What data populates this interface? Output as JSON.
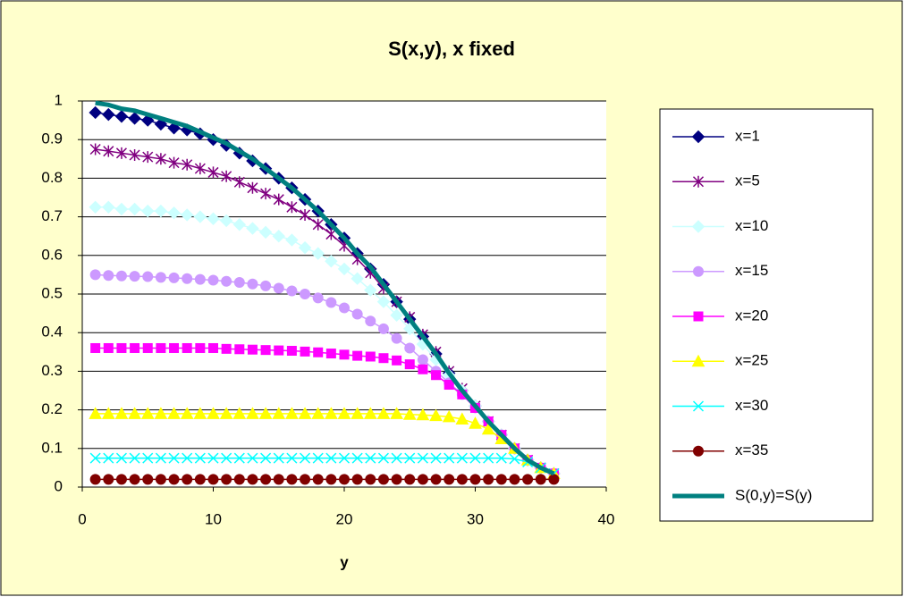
{
  "chart_data": {
    "type": "line",
    "title": "S(x,y), x fixed",
    "x_label": "y",
    "x": [
      1,
      2,
      3,
      4,
      5,
      6,
      7,
      8,
      9,
      10,
      11,
      12,
      13,
      14,
      15,
      16,
      17,
      18,
      19,
      20,
      21,
      22,
      23,
      24,
      25,
      26,
      27,
      28,
      29,
      30,
      31,
      32,
      33,
      34,
      35,
      36
    ],
    "xlim": [
      0,
      40
    ],
    "xticks": [
      0,
      10,
      20,
      30,
      40
    ],
    "ylim": [
      0,
      1
    ],
    "yticks": [
      0,
      0.1,
      0.2,
      0.3,
      0.4,
      0.5,
      0.6,
      0.7,
      0.8,
      0.9,
      1
    ],
    "grid": true,
    "legend": "right",
    "series": [
      {
        "name": "x=1",
        "color": "#000080",
        "marker": "diamond",
        "values": [
          0.97,
          0.965,
          0.96,
          0.955,
          0.95,
          0.94,
          0.93,
          0.925,
          0.915,
          0.9,
          0.885,
          0.865,
          0.845,
          0.825,
          0.8,
          0.775,
          0.745,
          0.715,
          0.68,
          0.645,
          0.605,
          0.565,
          0.525,
          0.48,
          0.435,
          0.39,
          0.345,
          0.295,
          0.25,
          0.21,
          0.17,
          0.135,
          0.1,
          0.07,
          0.05,
          0.035
        ]
      },
      {
        "name": "x=5",
        "color": "#800080",
        "marker": "star",
        "values": [
          0.875,
          0.87,
          0.865,
          0.86,
          0.855,
          0.85,
          0.84,
          0.835,
          0.825,
          0.815,
          0.805,
          0.79,
          0.775,
          0.76,
          0.745,
          0.725,
          0.705,
          0.68,
          0.655,
          0.625,
          0.59,
          0.555,
          0.515,
          0.48,
          0.44,
          0.395,
          0.35,
          0.3,
          0.255,
          0.21,
          0.17,
          0.135,
          0.1,
          0.07,
          0.05,
          0.035
        ]
      },
      {
        "name": "x=10",
        "color": "#CCFFFF",
        "marker": "diamond",
        "values": [
          0.725,
          0.725,
          0.72,
          0.72,
          0.715,
          0.715,
          0.71,
          0.705,
          0.7,
          0.695,
          0.69,
          0.68,
          0.67,
          0.66,
          0.65,
          0.64,
          0.62,
          0.605,
          0.585,
          0.565,
          0.54,
          0.51,
          0.48,
          0.445,
          0.41,
          0.37,
          0.33,
          0.29,
          0.25,
          0.21,
          0.17,
          0.135,
          0.1,
          0.07,
          0.05,
          0.035
        ]
      },
      {
        "name": "x=15",
        "color": "#CC99FF",
        "marker": "circle",
        "values": [
          0.55,
          0.548,
          0.547,
          0.546,
          0.545,
          0.543,
          0.542,
          0.54,
          0.538,
          0.536,
          0.533,
          0.53,
          0.526,
          0.521,
          0.515,
          0.508,
          0.5,
          0.49,
          0.478,
          0.464,
          0.448,
          0.43,
          0.41,
          0.385,
          0.36,
          0.33,
          0.3,
          0.27,
          0.24,
          0.205,
          0.17,
          0.135,
          0.1,
          0.07,
          0.05,
          0.035
        ]
      },
      {
        "name": "x=20",
        "color": "#FF00FF",
        "marker": "square",
        "values": [
          0.36,
          0.36,
          0.36,
          0.36,
          0.36,
          0.36,
          0.36,
          0.36,
          0.36,
          0.36,
          0.358,
          0.357,
          0.356,
          0.355,
          0.354,
          0.353,
          0.351,
          0.349,
          0.346,
          0.343,
          0.34,
          0.338,
          0.334,
          0.328,
          0.318,
          0.305,
          0.29,
          0.265,
          0.24,
          0.205,
          0.17,
          0.135,
          0.1,
          0.07,
          0.05,
          0.035
        ]
      },
      {
        "name": "x=25",
        "color": "#FFFF00",
        "marker": "triangle",
        "values": [
          0.19,
          0.19,
          0.19,
          0.19,
          0.19,
          0.19,
          0.19,
          0.19,
          0.19,
          0.19,
          0.19,
          0.19,
          0.19,
          0.19,
          0.19,
          0.19,
          0.19,
          0.19,
          0.19,
          0.19,
          0.19,
          0.19,
          0.19,
          0.19,
          0.188,
          0.187,
          0.185,
          0.182,
          0.176,
          0.165,
          0.15,
          0.125,
          0.1,
          0.07,
          0.05,
          0.035
        ]
      },
      {
        "name": "x=30",
        "color": "#00FFFF",
        "marker": "x",
        "values": [
          0.075,
          0.075,
          0.075,
          0.075,
          0.075,
          0.075,
          0.075,
          0.075,
          0.075,
          0.075,
          0.075,
          0.075,
          0.075,
          0.075,
          0.075,
          0.075,
          0.075,
          0.075,
          0.075,
          0.075,
          0.075,
          0.075,
          0.075,
          0.075,
          0.075,
          0.075,
          0.075,
          0.075,
          0.075,
          0.075,
          0.075,
          0.075,
          0.073,
          0.065,
          0.05,
          0.035
        ]
      },
      {
        "name": "x=35",
        "color": "#800000",
        "marker": "circle",
        "values": [
          0.02,
          0.02,
          0.02,
          0.02,
          0.02,
          0.02,
          0.02,
          0.02,
          0.02,
          0.02,
          0.02,
          0.02,
          0.02,
          0.02,
          0.02,
          0.02,
          0.02,
          0.02,
          0.02,
          0.02,
          0.02,
          0.02,
          0.02,
          0.02,
          0.02,
          0.02,
          0.02,
          0.02,
          0.02,
          0.02,
          0.02,
          0.02,
          0.02,
          0.02,
          0.02,
          0.02
        ]
      },
      {
        "name": "S(0,y)=S(y)",
        "color": "#008080",
        "marker": "none",
        "values": [
          0.995,
          0.99,
          0.98,
          0.975,
          0.965,
          0.955,
          0.945,
          0.935,
          0.92,
          0.905,
          0.89,
          0.87,
          0.85,
          0.825,
          0.8,
          0.775,
          0.745,
          0.715,
          0.68,
          0.645,
          0.605,
          0.57,
          0.525,
          0.48,
          0.435,
          0.39,
          0.345,
          0.295,
          0.25,
          0.21,
          0.17,
          0.135,
          0.1,
          0.07,
          0.05,
          0.035
        ]
      }
    ]
  }
}
